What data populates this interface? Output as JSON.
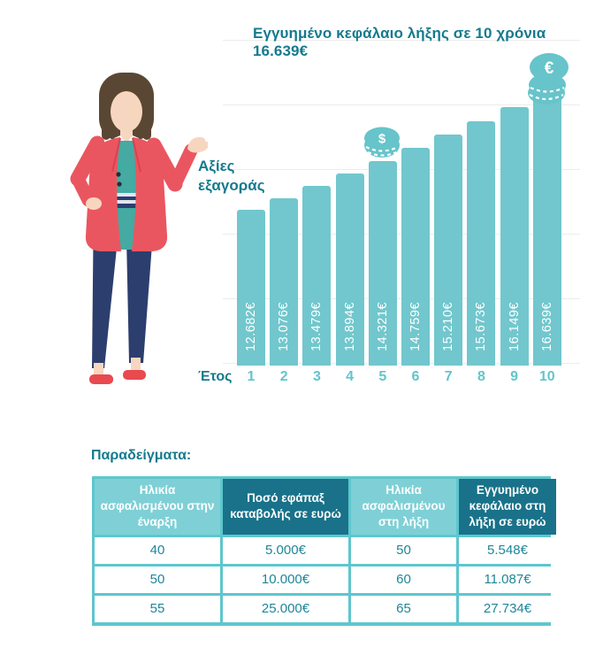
{
  "chart": {
    "value_axis_label": "Αξίες εξαγοράς",
    "bar_color": "#71c7cd",
    "title_color": "#157a8d",
    "icons": {
      "dollar_coin_symbol": "$",
      "euro_coin_symbol": "€"
    }
  },
  "chart_data": {
    "type": "bar",
    "title": "Εγγυημένο κεφάλαιο λήξης σε 10 χρόνια 16.639€",
    "xlabel": "Έτος",
    "ylabel": "Αξίες εξαγοράς",
    "categories": [
      "1",
      "2",
      "3",
      "4",
      "5",
      "6",
      "7",
      "8",
      "9",
      "10"
    ],
    "values": [
      12682,
      13076,
      13479,
      13894,
      14321,
      14759,
      15210,
      15673,
      16149,
      16639
    ],
    "value_labels": [
      "12.682€",
      "13.076€",
      "13.479€",
      "13.894€",
      "14.321€",
      "14.759€",
      "15.210€",
      "15.673€",
      "16.149€",
      "16.639€"
    ],
    "grid": "horizontal",
    "legend": "none",
    "annotations": [
      "dollar-coin above year 5",
      "euro-coin-stack above year 10"
    ]
  },
  "examples": {
    "heading": "Παραδείγματα:",
    "table": {
      "headers": [
        "Ηλικία ασφαλισμένου στην έναρξη",
        "Ποσό εφάπαξ καταβολής σε ευρώ",
        "Ηλικία ασφαλισμένου στη λήξη",
        "Εγγυημένο κεφάλαιο στη λήξη σε ευρώ"
      ],
      "rows": [
        [
          "40",
          "5.000€",
          "50",
          "5.548€"
        ],
        [
          "50",
          "10.000€",
          "60",
          "11.087€"
        ],
        [
          "55",
          "25.000€",
          "65",
          "27.734€"
        ]
      ]
    }
  },
  "colors": {
    "bar_teal": "#71c7cd",
    "dark_teal_text": "#157a8d",
    "axis_number_teal": "#64c4cb",
    "header_light_bg": "#7ed0d6",
    "header_dark_bg": "#197289",
    "table_border": "#5ec6cd",
    "cell_text": "#1e8698"
  }
}
